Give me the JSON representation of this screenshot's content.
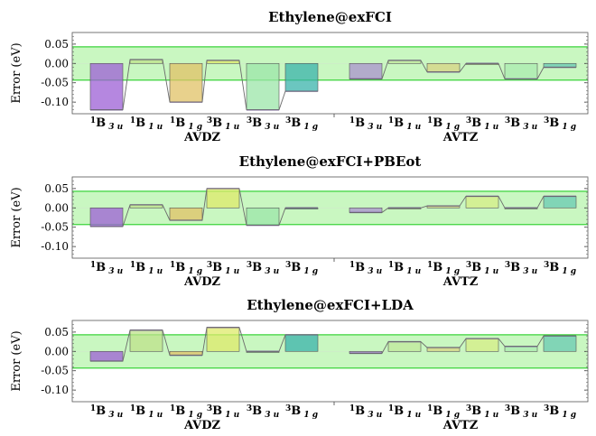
{
  "chart_data": [
    {
      "type": "bar",
      "title": "Ethylene@exFCI",
      "ylabel": "Error (eV)",
      "ylim": [
        -0.13,
        0.08
      ],
      "yticks": [
        "0.05",
        "0.00",
        "-0.05",
        "-0.10"
      ],
      "band": [
        -0.043,
        0.043
      ],
      "groups": [
        "AVDZ",
        "AVTZ"
      ],
      "categories": [
        {
          "sup": "1",
          "base": "B",
          "sub": "3u"
        },
        {
          "sup": "1",
          "base": "B",
          "sub": "1u"
        },
        {
          "sup": "1",
          "base": "B",
          "sub": "1g"
        },
        {
          "sup": "3",
          "base": "B",
          "sub": "1u"
        },
        {
          "sup": "3",
          "base": "B",
          "sub": "3u"
        },
        {
          "sup": "3",
          "base": "B",
          "sub": "1g"
        }
      ],
      "series": [
        {
          "group": "AVDZ",
          "values": [
            -0.12,
            0.01,
            -0.1,
            0.008,
            -0.12,
            -0.072
          ]
        },
        {
          "group": "AVTZ",
          "values": [
            -0.04,
            0.008,
            -0.022,
            0.0,
            -0.04,
            -0.01
          ]
        }
      ],
      "grid": false
    },
    {
      "type": "bar",
      "title": "Ethylene@exFCI+PBEot",
      "ylabel": "Error (eV)",
      "ylim": [
        -0.13,
        0.08
      ],
      "yticks": [
        "0.05",
        "0.00",
        "-0.05",
        "-0.10"
      ],
      "band": [
        -0.043,
        0.043
      ],
      "groups": [
        "AVDZ",
        "AVTZ"
      ],
      "categories": [
        {
          "sup": "1",
          "base": "B",
          "sub": "3u"
        },
        {
          "sup": "1",
          "base": "B",
          "sub": "1u"
        },
        {
          "sup": "1",
          "base": "B",
          "sub": "1g"
        },
        {
          "sup": "3",
          "base": "B",
          "sub": "1u"
        },
        {
          "sup": "3",
          "base": "B",
          "sub": "3u"
        },
        {
          "sup": "3",
          "base": "B",
          "sub": "1g"
        }
      ],
      "series": [
        {
          "group": "AVDZ",
          "values": [
            -0.048,
            0.008,
            -0.032,
            0.05,
            -0.045,
            0.0
          ]
        },
        {
          "group": "AVTZ",
          "values": [
            -0.012,
            0.0,
            0.005,
            0.03,
            0.0,
            0.03
          ]
        }
      ],
      "grid": false
    },
    {
      "type": "bar",
      "title": "Ethylene@exFCI+LDA",
      "ylabel": "Error (eV)",
      "ylim": [
        -0.13,
        0.08
      ],
      "yticks": [
        "0.05",
        "0.00",
        "-0.05",
        "-0.10"
      ],
      "band": [
        -0.043,
        0.043
      ],
      "groups": [
        "AVDZ",
        "AVTZ"
      ],
      "categories": [
        {
          "sup": "1",
          "base": "B",
          "sub": "3u"
        },
        {
          "sup": "1",
          "base": "B",
          "sub": "1u"
        },
        {
          "sup": "1",
          "base": "B",
          "sub": "1g"
        },
        {
          "sup": "3",
          "base": "B",
          "sub": "1u"
        },
        {
          "sup": "3",
          "base": "B",
          "sub": "3u"
        },
        {
          "sup": "3",
          "base": "B",
          "sub": "1g"
        }
      ],
      "series": [
        {
          "group": "AVDZ",
          "values": [
            -0.025,
            0.055,
            -0.01,
            0.062,
            0.0,
            0.043
          ]
        },
        {
          "group": "AVTZ",
          "values": [
            -0.005,
            0.025,
            0.01,
            0.033,
            0.013,
            0.04
          ]
        }
      ],
      "grid": false
    }
  ],
  "colors": {
    "band_fill": "#c9f7c1",
    "band_line": "#3bd43b",
    "bars": [
      "#9c5fd6",
      "#bde28a",
      "#e0c266",
      "#ddea6a",
      "#9be5a8",
      "#39b3ab"
    ],
    "step_line": "#6b6b6b"
  }
}
